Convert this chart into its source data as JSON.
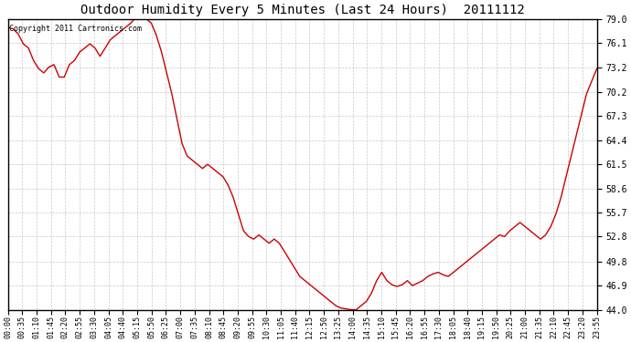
{
  "title": "Outdoor Humidity Every 5 Minutes (Last 24 Hours)  20111112",
  "copyright": "Copyright 2011 Cartronics.com",
  "line_color": "#cc0000",
  "background_color": "#ffffff",
  "grid_color": "#bbbbbb",
  "yticks": [
    44.0,
    46.9,
    49.8,
    52.8,
    55.7,
    58.6,
    61.5,
    64.4,
    67.3,
    70.2,
    73.2,
    76.1,
    79.0
  ],
  "ylim": [
    44.0,
    79.0
  ],
  "xtick_labels": [
    "00:00",
    "00:35",
    "01:10",
    "01:45",
    "02:20",
    "02:55",
    "03:30",
    "04:05",
    "04:40",
    "05:15",
    "05:50",
    "06:25",
    "07:00",
    "07:35",
    "08:10",
    "08:45",
    "09:20",
    "09:55",
    "10:30",
    "11:05",
    "11:40",
    "12:15",
    "12:50",
    "13:25",
    "14:00",
    "14:35",
    "15:10",
    "15:45",
    "16:20",
    "16:55",
    "17:30",
    "18:05",
    "18:40",
    "19:15",
    "19:50",
    "20:25",
    "21:00",
    "21:35",
    "22:10",
    "22:45",
    "23:20",
    "23:55"
  ],
  "humidity_values": [
    78.0,
    77.8,
    77.2,
    76.0,
    75.5,
    74.0,
    73.0,
    72.5,
    73.2,
    73.5,
    72.0,
    72.0,
    73.5,
    74.0,
    75.0,
    75.5,
    76.0,
    75.5,
    74.5,
    75.5,
    76.5,
    77.0,
    77.5,
    78.0,
    78.5,
    79.2,
    79.5,
    79.0,
    78.5,
    77.0,
    75.0,
    72.5,
    70.0,
    67.0,
    64.0,
    62.5,
    62.0,
    61.5,
    61.0,
    61.5,
    61.0,
    60.5,
    60.0,
    59.0,
    57.5,
    55.5,
    53.5,
    52.8,
    52.5,
    53.0,
    52.5,
    52.0,
    52.5,
    52.0,
    51.0,
    50.0,
    49.0,
    48.0,
    47.5,
    47.0,
    46.5,
    46.0,
    45.5,
    45.0,
    44.5,
    44.2,
    44.1,
    44.0,
    44.0,
    44.5,
    45.0,
    46.0,
    47.5,
    48.5,
    47.5,
    47.0,
    46.8,
    47.0,
    47.5,
    46.9,
    47.2,
    47.5,
    48.0,
    48.3,
    48.5,
    48.2,
    48.0,
    48.5,
    49.0,
    49.5,
    50.0,
    50.5,
    51.0,
    51.5,
    52.0,
    52.5,
    53.0,
    52.8,
    53.5,
    54.0,
    54.5,
    54.0,
    53.5,
    53.0,
    52.5,
    53.0,
    54.0,
    55.5,
    57.5,
    60.0,
    62.5,
    65.0,
    67.5,
    70.0,
    71.5,
    73.0
  ]
}
